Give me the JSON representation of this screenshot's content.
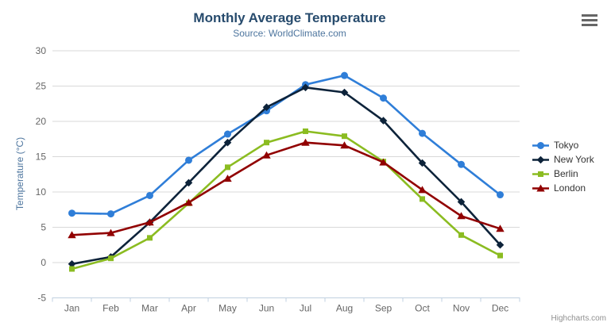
{
  "chart": {
    "title": "Monthly Average Temperature",
    "subtitle": "Source: WorldClimate.com",
    "credits_label": "Highcharts.com",
    "export_icon": "hamburger-menu-icon"
  },
  "colors": {
    "background": "#ffffff",
    "title": "#274b6d",
    "subtitle": "#4d759e",
    "axis_title": "#4d759e",
    "axis_labels": "#666666",
    "grid": "#d8d8d8",
    "axis_line": "#c0d0e0",
    "legend_text": "#333333",
    "credits": "#909090",
    "export_icon": "#666666"
  },
  "chart_data": {
    "type": "line",
    "title": "Monthly Average Temperature",
    "subtitle": "Source: WorldClimate.com",
    "xlabel": "",
    "ylabel": "Temperature (°C)",
    "ylim": [
      -5,
      30
    ],
    "yticks": [
      -5,
      0,
      5,
      10,
      15,
      20,
      25,
      30
    ],
    "grid": true,
    "legend_position": "right",
    "categories": [
      "Jan",
      "Feb",
      "Mar",
      "Apr",
      "May",
      "Jun",
      "Jul",
      "Aug",
      "Sep",
      "Oct",
      "Nov",
      "Dec"
    ],
    "series": [
      {
        "name": "Tokyo",
        "color": "#2f7ed8",
        "marker": "circle",
        "values": [
          7.0,
          6.9,
          9.5,
          14.5,
          18.2,
          21.5,
          25.2,
          26.5,
          23.3,
          18.3,
          13.9,
          9.6
        ]
      },
      {
        "name": "New York",
        "color": "#0d233a",
        "marker": "diamond",
        "values": [
          -0.2,
          0.8,
          5.7,
          11.3,
          17.0,
          22.0,
          24.8,
          24.1,
          20.1,
          14.1,
          8.6,
          2.5
        ]
      },
      {
        "name": "Berlin",
        "color": "#8bbc21",
        "marker": "square",
        "values": [
          -0.9,
          0.6,
          3.5,
          8.4,
          13.5,
          17.0,
          18.6,
          17.9,
          14.3,
          9.0,
          3.9,
          1.0
        ]
      },
      {
        "name": "London",
        "color": "#910000",
        "marker": "triangle",
        "values": [
          3.9,
          4.2,
          5.7,
          8.5,
          11.9,
          15.2,
          17.0,
          16.6,
          14.2,
          10.3,
          6.6,
          4.8
        ]
      }
    ]
  }
}
